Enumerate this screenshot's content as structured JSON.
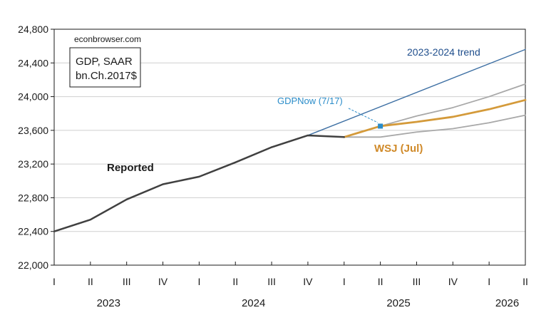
{
  "chart_data": {
    "type": "line",
    "source_label": "econbrowser.com",
    "legend_box_lines": [
      "GDP, SAAR",
      "bn.Ch.2017$"
    ],
    "ylim": [
      22000,
      24800
    ],
    "y_ticks": [
      22000,
      22400,
      22800,
      23200,
      23600,
      24000,
      24400,
      24800
    ],
    "y_tick_labels": [
      "22,000",
      "22,400",
      "22,800",
      "23,200",
      "23,600",
      "24,000",
      "24,400",
      "24,800"
    ],
    "quarter_labels": [
      "I",
      "II",
      "III",
      "IV",
      "I",
      "II",
      "III",
      "IV",
      "I",
      "II",
      "III",
      "IV",
      "I",
      "II"
    ],
    "years": [
      {
        "label": "2023",
        "start": 0,
        "end": 3
      },
      {
        "label": "2024",
        "start": 4,
        "end": 7
      },
      {
        "label": "2025",
        "start": 8,
        "end": 11
      },
      {
        "label": "2026",
        "start": 12,
        "end": 13
      }
    ],
    "grid": true,
    "series": [
      {
        "key": "reported",
        "name": "Reported",
        "color": "#404040",
        "x": [
          0,
          1,
          2,
          3,
          4,
          5,
          6,
          7,
          8
        ],
        "values": [
          22400,
          22540,
          22780,
          22960,
          23050,
          23220,
          23400,
          23540,
          23520
        ]
      },
      {
        "key": "trend",
        "name": "2023-2024 trend",
        "color": "#3d6fa3",
        "x": [
          7,
          13
        ],
        "values": [
          23540,
          24560
        ]
      },
      {
        "key": "wsj",
        "name": "WSJ (Jul)",
        "color": "#d49a3a",
        "x": [
          8,
          9,
          10,
          11,
          12,
          13
        ],
        "values": [
          23520,
          23650,
          23700,
          23760,
          23850,
          23960
        ]
      },
      {
        "key": "wsj_upper",
        "color": "#a8a8a8",
        "x": [
          8,
          9,
          10,
          11,
          12,
          13
        ],
        "values": [
          23520,
          23650,
          23770,
          23870,
          24000,
          24150
        ]
      },
      {
        "key": "wsj_lower",
        "color": "#a8a8a8",
        "x": [
          8,
          9,
          10,
          11,
          12,
          13
        ],
        "values": [
          23520,
          23520,
          23580,
          23620,
          23690,
          23780
        ]
      }
    ],
    "gdpnow": {
      "label": "GDPNow (7/17)",
      "x": 9,
      "value": 23650,
      "color": "#2a8cc9"
    }
  }
}
